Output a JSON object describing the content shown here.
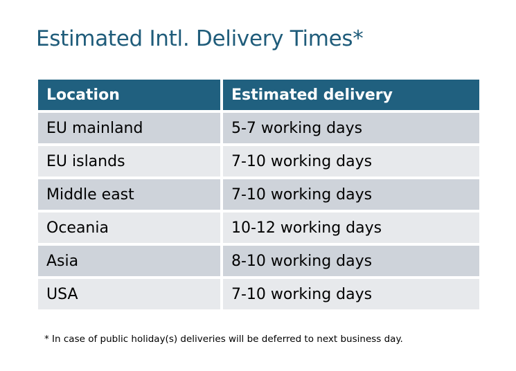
{
  "title": "Estimated Intl. Delivery Times*",
  "table": {
    "headers": [
      "Location",
      "Estimated delivery"
    ],
    "rows": [
      [
        "EU mainland",
        "5-7 working days"
      ],
      [
        "EU islands",
        "7-10 working days"
      ],
      [
        "Middle east",
        "7-10 working days"
      ],
      [
        "Oceania",
        "10-12 working days"
      ],
      [
        "Asia",
        "8-10 working days"
      ],
      [
        "USA",
        "7-10 working days"
      ]
    ]
  },
  "footnote": "* In case of public holiday(s) deliveries will be deferred to next business day.",
  "colors": {
    "title": "#1F5C7A",
    "header": "#20607F",
    "row_odd": "#CED3DA",
    "row_even": "#E7E9EC"
  }
}
